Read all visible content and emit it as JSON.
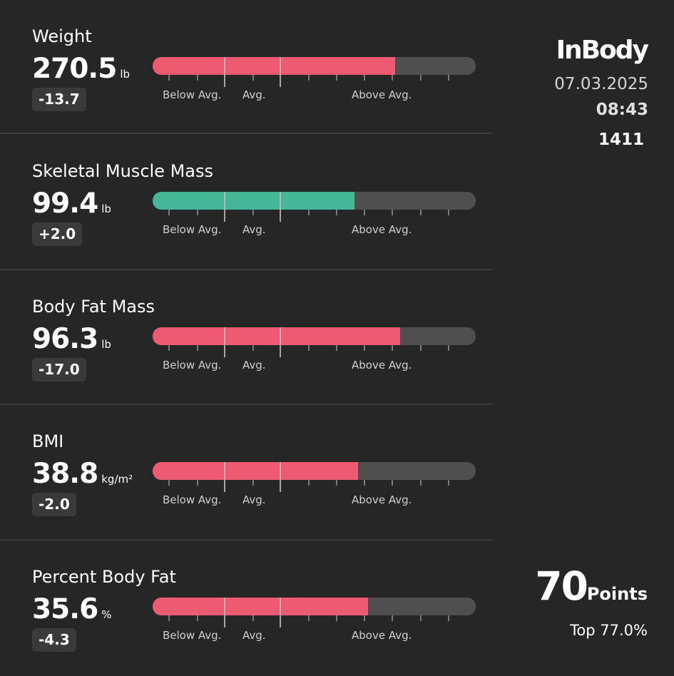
{
  "brand": {
    "logo": "InBody",
    "date": "07.03.2025",
    "time": "08:43",
    "code": "1411"
  },
  "score": {
    "value": "70",
    "label": "Points",
    "rank": "Top 77.0%"
  },
  "scale_labels": {
    "below": "Below Avg.",
    "avg": "Avg.",
    "above": "Above Avg."
  },
  "colors": {
    "over": "#ee5a72",
    "normal": "#43b796",
    "track": "#4f4f4f"
  },
  "metrics": [
    {
      "title": "Weight",
      "value": "270.5",
      "unit": "lb",
      "delta": "-13.7",
      "fill": 0.75,
      "color": "#ee5a72"
    },
    {
      "title": "Skeletal Muscle Mass",
      "value": "99.4",
      "unit": "lb",
      "delta": "+2.0",
      "fill": 0.625,
      "color": "#43b796"
    },
    {
      "title": "Body Fat Mass",
      "value": "96.3",
      "unit": "lb",
      "delta": "-17.0",
      "fill": 0.767,
      "color": "#ee5a72"
    },
    {
      "title": "BMI",
      "value": "38.8",
      "unit": "kg/m²",
      "delta": "-2.0",
      "fill": 0.635,
      "color": "#ee5a72"
    },
    {
      "title": "Percent Body Fat",
      "value": "35.6",
      "unit": "%",
      "delta": "-4.3",
      "fill": 0.667,
      "color": "#ee5a72"
    }
  ]
}
